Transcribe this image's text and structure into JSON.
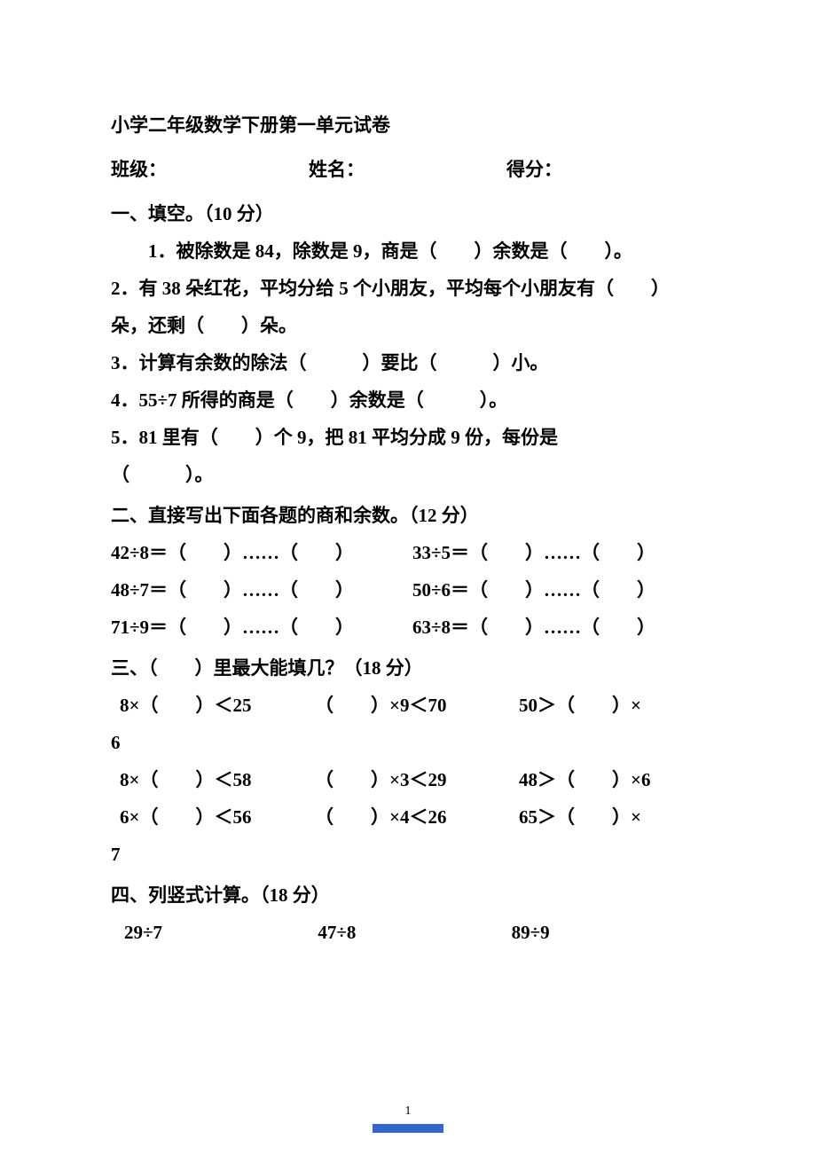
{
  "header": {
    "title": "小学二年级数学下册第一单元试卷",
    "class_label": "班级：",
    "name_label": "姓名：",
    "score_label": "得分："
  },
  "section1": {
    "title": "一、填空。（10 分）",
    "q1": "1．被除数是 84，除数是 9，商是（　　）余数是（　　）。",
    "q2a": "2．有 38 朵红花，平均分给 5 个小朋友，平均每个小朋友有（　　）",
    "q2b": "朵，还剩（　　）朵。",
    "q3": "3．计算有余数的除法（　　　）要比（　　　）小。",
    "q4": "4．55÷7 所得的商是（　　）余数是（　　　）。",
    "q5a": "5．81 里有（　　）个 9，把 81 平均分成 9 份，每份是",
    "q5b": "（　　　）。"
  },
  "section2": {
    "title": "二、直接写出下面各题的商和余数。（12 分）",
    "rows": [
      {
        "left": "42÷8＝（　　）……（　　）",
        "right": "33÷5＝（　　）……（　　）"
      },
      {
        "left": "48÷7＝（　　）……（　　）",
        "right": "50÷6＝（　　）……（　　）"
      },
      {
        "left": "71÷9＝（　　）……（　　）",
        "right": "63÷8＝（　　）……（　　）"
      }
    ]
  },
  "section3": {
    "title": "三、（　　）里最大能填几？（18 分）",
    "rows": [
      {
        "c1": "8×（　　）＜25",
        "c2": "（　　）×9＜70",
        "c3": "50＞（　　）×"
      },
      {
        "cont": "6"
      },
      {
        "c1": "8×（　　）＜58",
        "c2": "（　　）×3＜29",
        "c3": "48＞（　　）×6"
      },
      {
        "c1": " 6×（　　）＜56",
        "c2": "（　　）×4＜26",
        "c3": "65＞（　　）×"
      },
      {
        "cont": "7"
      }
    ]
  },
  "section4": {
    "title": "四、列竖式计算。（18 分）",
    "items": [
      "29÷7",
      "47÷8",
      "89÷9"
    ]
  },
  "footer": {
    "page_num": "1"
  },
  "colors": {
    "text": "#000000",
    "background": "#ffffff",
    "accent": "#3366cc"
  },
  "typography": {
    "body_fontsize": 21,
    "font_family": "SimSun",
    "font_weight": "bold",
    "line_height": 2.0
  }
}
